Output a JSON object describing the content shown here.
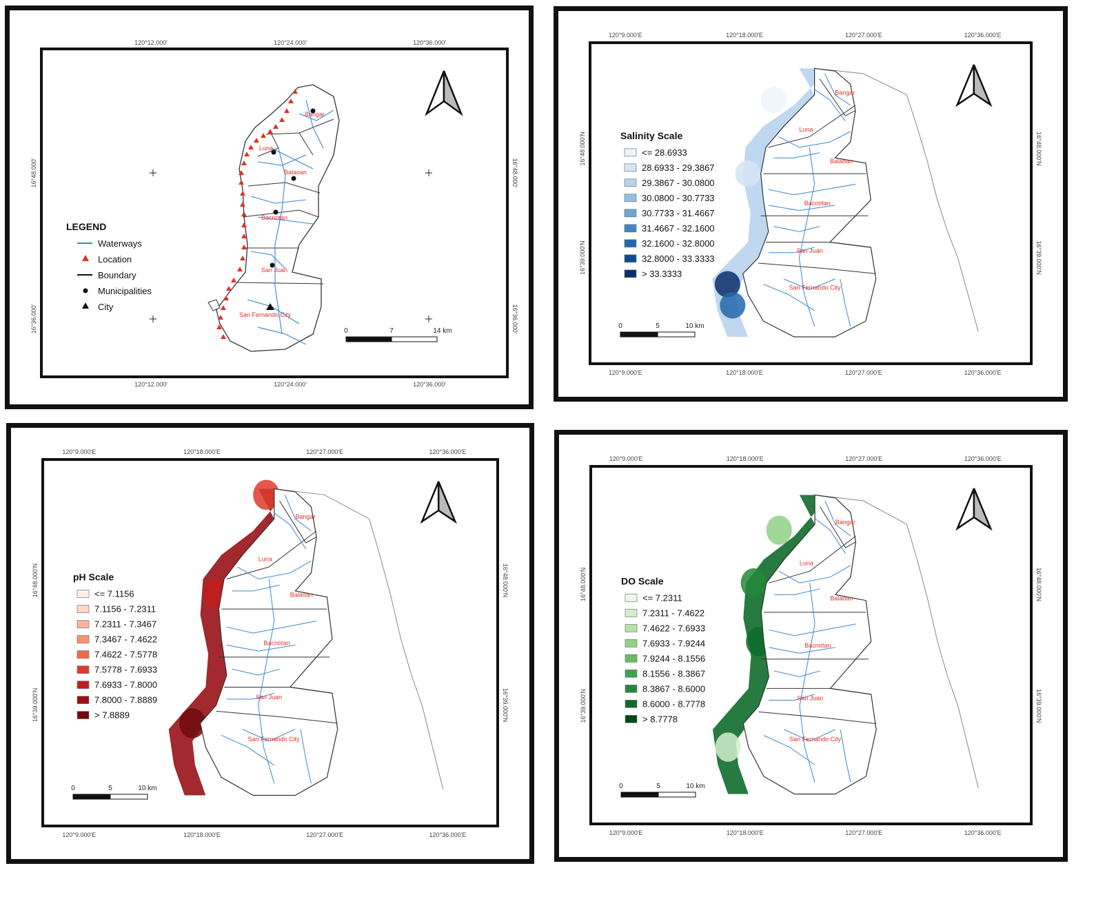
{
  "panels": [
    {
      "id": "overview",
      "top_labels": [
        "120°12.000'",
        "120°24.000'",
        "120°36.000'"
      ],
      "bottom_labels": [
        "120°12.000'",
        "120°24.000'",
        "120°36.000'"
      ],
      "left_labels": [
        "16°48.000'",
        "16°36.000'"
      ],
      "right_labels": [
        "16°48.000'",
        "16°36.000'"
      ],
      "legend": {
        "title": "LEGEND",
        "items": [
          "Waterways",
          "Location",
          "Boundary",
          "Municipalities",
          "City"
        ]
      },
      "places": [
        "Bangar",
        "Luna",
        "Balaoan",
        "Bacnotan",
        "San Juan",
        "San Fernando City"
      ],
      "scalebar": [
        "0",
        "7",
        "14 km"
      ]
    },
    {
      "id": "salinity",
      "top_labels": [
        "120°9.000'E",
        "120°18.000'E",
        "120°27.000'E",
        "120°36.000'E"
      ],
      "bottom_labels": [
        "120°9.000'E",
        "120°18.000'E",
        "120°27.000'E",
        "120°36.000'E"
      ],
      "left_labels": [
        "16°48.000'N",
        "16°39.000'N"
      ],
      "right_labels": [
        "16°48.000'N",
        "16°39.000'N"
      ],
      "legend": {
        "title": "Salinity Scale",
        "classes": [
          "<= 28.6933",
          "28.6933 - 29.3867",
          "29.3867 - 30.0800",
          "30.0800 - 30.7733",
          "30.7733 - 31.4667",
          "31.4667 - 32.1600",
          "32.1600 - 32.8000",
          "32.8000 - 33.3333",
          "> 33.3333"
        ],
        "colors": [
          "#eef4fb",
          "#d4e5f5",
          "#b8d4ed",
          "#93c0e2",
          "#6aa7d6",
          "#3f86c4",
          "#2367ae",
          "#0e4a92",
          "#0a2f6b"
        ]
      },
      "places": [
        "Bangar",
        "Luna",
        "Balaoan",
        "Bacnotan",
        "San Juan",
        "San Fernando City"
      ],
      "scalebar": [
        "0",
        "5",
        "10 km"
      ]
    },
    {
      "id": "ph",
      "top_labels": [
        "120°9.000'E",
        "120°18.000'E",
        "120°27.000'E",
        "120°36.000'E"
      ],
      "bottom_labels": [
        "120°9.000'E",
        "120°18.000'E",
        "120°27.000'E",
        "120°36.000'E"
      ],
      "left_labels": [
        "16°48.000'N",
        "16°39.000'N"
      ],
      "right_labels": [
        "16°48.000'N",
        "16°39.000'N"
      ],
      "legend": {
        "title": "pH Scale",
        "classes": [
          "<= 7.1156",
          "7.1156 - 7.2311",
          "7.2311 - 7.3467",
          "7.3467 - 7.4622",
          "7.4622 - 7.5778",
          "7.5778 - 7.6933",
          "7.6933 - 7.8000",
          "7.8000 - 7.8889",
          "> 7.8889"
        ],
        "colors": [
          "#fdf0ea",
          "#fcd6c6",
          "#fbb49c",
          "#f9916f",
          "#f26a4b",
          "#de3a2d",
          "#c21c1f",
          "#981216",
          "#6e0a0e"
        ]
      },
      "places": [
        "Bangar",
        "Luna",
        "Balaoan",
        "Bacnotan",
        "San Juan",
        "San Fernando City"
      ],
      "scalebar": [
        "0",
        "5",
        "10 km"
      ]
    },
    {
      "id": "do",
      "top_labels": [
        "120°9.000'E",
        "120°18.000'E",
        "120°27.000'E",
        "120°36.000'E"
      ],
      "bottom_labels": [
        "120°9.000'E",
        "120°18.000'E",
        "120°27.000'E",
        "120°36.000'E"
      ],
      "left_labels": [
        "16°48.000'N",
        "16°39.000'N"
      ],
      "right_labels": [
        "16°48.000'N",
        "16°39.000'N"
      ],
      "legend": {
        "title": "DO Scale",
        "classes": [
          "<= 7.2311",
          "7.2311 - 7.4622",
          "7.4622 - 7.6933",
          "7.6933 - 7.9244",
          "7.9244 - 8.1556",
          "8.1556 - 8.3867",
          "8.3867 - 8.6000",
          "8.6000 - 8.7778",
          "> 8.7778"
        ],
        "colors": [
          "#eef7ea",
          "#d3eecb",
          "#b5e1a9",
          "#91d086",
          "#68bb66",
          "#42a250",
          "#23883b",
          "#0f6c2b",
          "#07491b"
        ]
      },
      "places": [
        "Bangar",
        "Luna",
        "Balaoan",
        "Bacnotan",
        "San Juan",
        "San Fernando City"
      ],
      "scalebar": [
        "0",
        "5",
        "10 km"
      ]
    }
  ],
  "colors": {
    "frame": "#111111",
    "waterways": "#3a86d4",
    "location": "#e03028",
    "place_label": "#e0302a",
    "boundary": "#222222",
    "outline": "#888888"
  }
}
